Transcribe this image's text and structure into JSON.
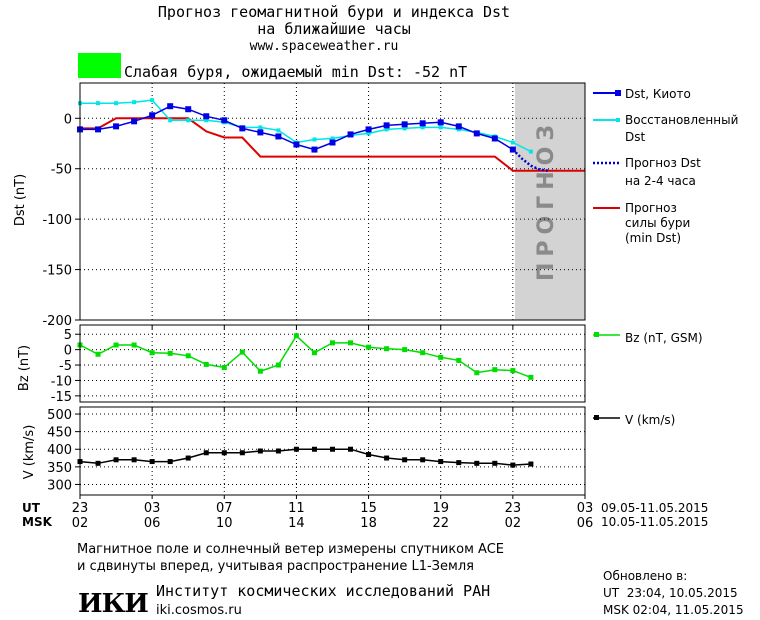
{
  "header": {
    "title_line1": "Прогноз геомагнитной бури и индекса Dst",
    "title_line2": "на ближайшие часы",
    "url": "www.spaceweather.ru",
    "storm_status": "Слабая буря, ожидаемый min Dst: -52 nT",
    "storm_color": "#00ff00"
  },
  "colors": {
    "dst": "#0000e6",
    "restored": "#00e6e6",
    "forecast_dst": "#0000cc",
    "storm_forecast": "#dd0000",
    "bz": "#00dd00",
    "v": "#000000",
    "forecast_band": "#d3d3d3"
  },
  "chart_data": [
    {
      "type": "line",
      "ylabel": "Dst (nT)",
      "ylim": [
        -200,
        35
      ],
      "yticks": [
        0,
        -50,
        -100,
        -150,
        -200
      ],
      "xlim": [
        0,
        28
      ],
      "forecast_region": [
        24,
        28
      ],
      "forecast_region_label": "ПРОГНОЗ",
      "series": [
        {
          "name": "Dst, Киото",
          "x": [
            0,
            1,
            2,
            3,
            4,
            5,
            6,
            7,
            8,
            9,
            10,
            11,
            12,
            13,
            14,
            15,
            16,
            17,
            18,
            19,
            20,
            21,
            22,
            23,
            24
          ],
          "values": [
            -11,
            -11,
            -8,
            -3,
            3,
            12,
            9,
            2,
            -2,
            -10,
            -14,
            -18,
            -26,
            -31,
            -24,
            -16,
            -11,
            -7,
            -6,
            -5,
            -4,
            -8,
            -15,
            -20,
            -31
          ]
        },
        {
          "name": "Восстановленный Dst",
          "x": [
            0,
            1,
            2,
            3,
            4,
            5,
            6,
            7,
            8,
            9,
            10,
            11,
            12,
            13,
            14,
            15,
            16,
            17,
            18,
            19,
            20,
            21,
            22,
            23,
            24,
            25
          ],
          "values": [
            15,
            15,
            15,
            16,
            18,
            -2,
            -2,
            -2,
            -4,
            -9,
            -9,
            -12,
            -24,
            -21,
            -20,
            -17,
            -15,
            -11,
            -10,
            -9,
            -9,
            -11,
            -14,
            -18,
            -24,
            -33
          ]
        },
        {
          "name": "Прогноз Dst на 2-4 часа",
          "x": [
            24,
            24.5,
            25,
            25.5,
            26
          ],
          "values": [
            -31,
            -40,
            -47,
            -51,
            -52
          ]
        },
        {
          "name": "Прогноз силы бури (min Dst)",
          "x": [
            0,
            1,
            2,
            3,
            4,
            5,
            6,
            7,
            8,
            9,
            10,
            11,
            12,
            13,
            14,
            15,
            16,
            17,
            18,
            19,
            20,
            21,
            22,
            23,
            24,
            25,
            26,
            27,
            28
          ],
          "values": [
            -10,
            -10,
            0,
            0,
            0,
            0,
            0,
            -13,
            -19,
            -19,
            -38,
            -38,
            -38,
            -38,
            -38,
            -38,
            -38,
            -38,
            -38,
            -38,
            -38,
            -38,
            -38,
            -38,
            -52,
            -52,
            -52,
            -52,
            -52
          ]
        }
      ]
    },
    {
      "type": "line",
      "ylabel": "Bz (nT)",
      "ylim": [
        -17,
        8
      ],
      "yticks": [
        5,
        0,
        -5,
        -10,
        -15
      ],
      "series": [
        {
          "name": "Bz (nT, GSM)",
          "x": [
            0,
            1,
            2,
            3,
            4,
            5,
            6,
            7,
            8,
            9,
            10,
            11,
            12,
            13,
            14,
            15,
            16,
            17,
            18,
            19,
            20,
            21,
            22,
            23,
            24,
            25
          ],
          "values": [
            1.5,
            -1.5,
            1.5,
            1.5,
            -1,
            -1.2,
            -2,
            -4.8,
            -5.8,
            -0.8,
            -7,
            -5,
            4.5,
            -1,
            2.2,
            2.2,
            0.8,
            0.3,
            0,
            -1,
            -2.5,
            -3.5,
            -7.5,
            -6.5,
            -6.8,
            -9
          ]
        }
      ]
    },
    {
      "type": "line",
      "ylabel": "V (km/s)",
      "ylim": [
        270,
        520
      ],
      "yticks": [
        500,
        450,
        400,
        350,
        300
      ],
      "series": [
        {
          "name": "V (km/s)",
          "x": [
            0,
            1,
            2,
            3,
            4,
            5,
            6,
            7,
            8,
            9,
            10,
            11,
            12,
            13,
            14,
            15,
            16,
            17,
            18,
            19,
            20,
            21,
            22,
            23,
            24,
            25
          ],
          "values": [
            365,
            360,
            370,
            370,
            365,
            365,
            375,
            390,
            390,
            390,
            395,
            395,
            400,
            400,
            400,
            400,
            385,
            375,
            370,
            370,
            365,
            362,
            360,
            360,
            355,
            358
          ]
        }
      ]
    }
  ],
  "axis": {
    "ut_label": "UT",
    "msk_label": "MSK",
    "ut_ticks": [
      "23",
      "03",
      "07",
      "11",
      "15",
      "19",
      "23",
      "03"
    ],
    "msk_ticks": [
      "02",
      "06",
      "10",
      "14",
      "18",
      "22",
      "02",
      "06"
    ],
    "ut_range": "09.05-11.05.2015",
    "msk_range": "10.05-11.05.2015"
  },
  "footer": {
    "note_line1": "Магнитное поле и солнечный ветер измерены спутником ACE",
    "note_line2": "и сдвинуты вперед, учитывая распространение L1-Земля",
    "logo_text": "ИКИ",
    "institute": "Институт космических исследований РАН",
    "institute_url": "iki.cosmos.ru",
    "updated_label": "Обновлено в:",
    "updated_ut": "UT  23:04, 10.05.2015",
    "updated_msk": "MSK 02:04, 11.05.2015"
  },
  "legend": {
    "dst_kyoto": "Dst, Киото",
    "restored_line1": "Восстановленный",
    "restored_line2": "Dst",
    "forecast_line1": "Прогноз Dst",
    "forecast_line2": "на 2-4 часа",
    "storm_line1": "Прогноз",
    "storm_line2": "силы бури",
    "storm_line3": "(min Dst)",
    "bz": "Bz (nT, GSM)",
    "v": "V (km/s)"
  }
}
